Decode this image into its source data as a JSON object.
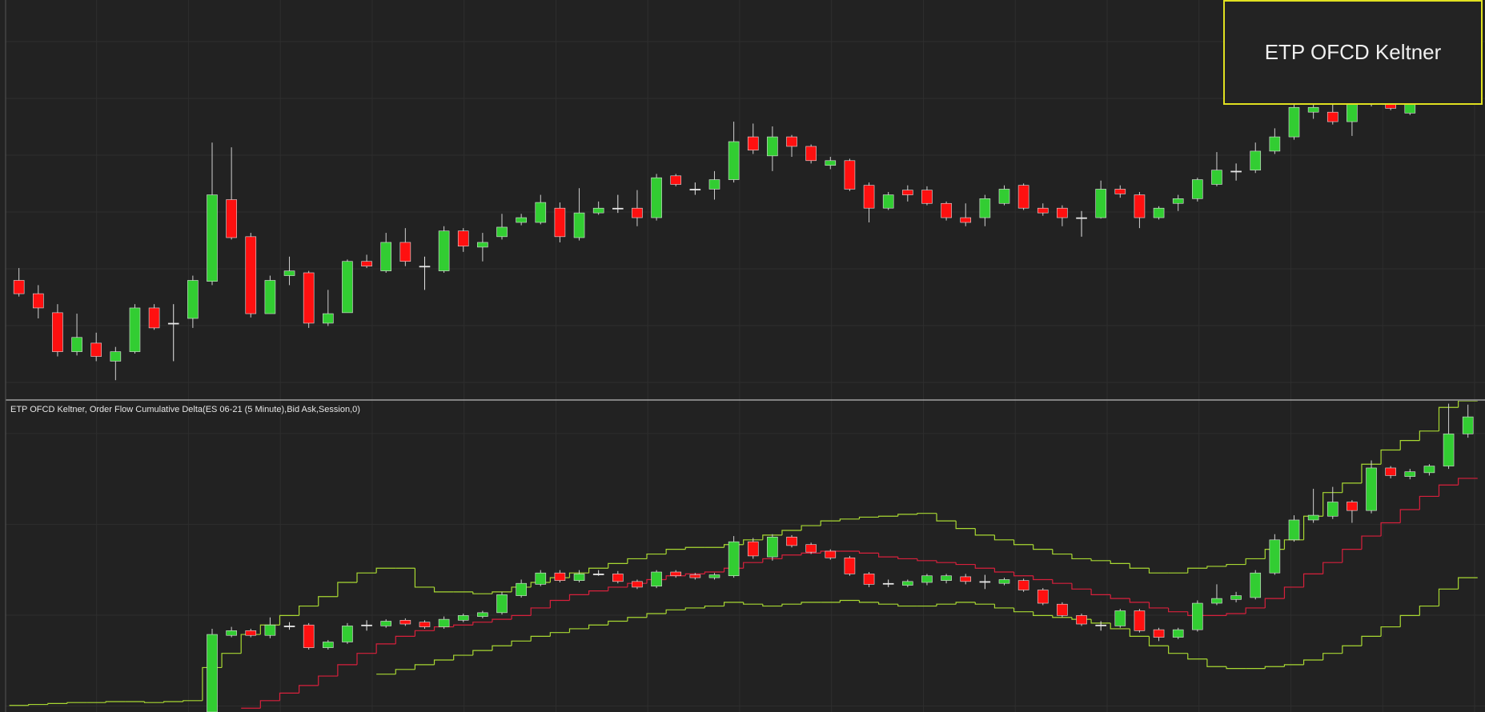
{
  "overlay": {
    "label": "ETP OFCD Keltner"
  },
  "chart_data": [
    {
      "type": "candlestick",
      "up_color": "#32cd32",
      "down_color": "#ff1010",
      "doji_color": "#e8e8e8",
      "ylim": [
        0,
        420
      ],
      "categories": [
        null,
        null,
        null,
        null,
        null,
        null,
        null,
        null,
        null,
        null,
        null,
        null,
        null,
        null,
        null,
        null,
        null,
        null,
        null,
        null,
        null,
        null,
        null,
        null,
        null,
        null,
        null,
        null,
        null,
        null,
        null,
        null,
        null,
        null,
        null,
        null,
        null,
        null,
        null,
        null,
        null,
        null,
        null,
        null,
        null,
        null,
        null,
        null,
        null,
        null,
        null,
        null,
        null,
        null,
        null,
        null,
        null,
        null,
        null,
        null,
        null,
        null,
        null,
        null,
        null,
        null,
        null,
        null,
        null,
        null,
        null,
        null,
        null,
        null,
        null,
        null
      ],
      "open": [
        125,
        111,
        91,
        50,
        59,
        40,
        50,
        96,
        80,
        85,
        124,
        210,
        171,
        90,
        130,
        133,
        80,
        91,
        145,
        135,
        165,
        140,
        135,
        177,
        160,
        171,
        186,
        186,
        201,
        170,
        196,
        201,
        201,
        191,
        235,
        221,
        221,
        231,
        276,
        256,
        276,
        266,
        246,
        251,
        225,
        201,
        220,
        220,
        206,
        191,
        191,
        206,
        225,
        201,
        201,
        191,
        191,
        221,
        215,
        191,
        206,
        211,
        226,
        240,
        241,
        261,
        276,
        302,
        302,
        292,
        310,
        310,
        301,
        null,
        null,
        null
      ],
      "high": [
        138,
        120,
        100,
        90,
        70,
        55,
        100,
        100,
        100,
        130,
        270,
        265,
        175,
        130,
        150,
        135,
        115,
        147,
        152,
        175,
        180,
        150,
        182,
        180,
        175,
        195,
        195,
        215,
        207,
        222,
        208,
        215,
        220,
        237,
        237,
        228,
        240,
        292,
        290,
        287,
        278,
        268,
        255,
        253,
        228,
        218,
        225,
        224,
        208,
        206,
        215,
        225,
        227,
        206,
        204,
        198,
        230,
        225,
        218,
        203,
        215,
        233,
        260,
        248,
        270,
        285,
        312,
        315,
        310,
        312,
        325,
        315,
        315,
        null,
        null,
        null
      ],
      "low": [
        108,
        85,
        45,
        46,
        40,
        20,
        48,
        73,
        40,
        75,
        120,
        168,
        86,
        90,
        120,
        75,
        77,
        91,
        138,
        133,
        140,
        115,
        133,
        155,
        145,
        168,
        183,
        184,
        165,
        167,
        194,
        196,
        182,
        188,
        224,
        215,
        210,
        228,
        258,
        240,
        255,
        248,
        242,
        219,
        186,
        199,
        208,
        204,
        188,
        182,
        182,
        204,
        199,
        193,
        182,
        171,
        190,
        212,
        180,
        189,
        198,
        208,
        224,
        230,
        238,
        258,
        273,
        295,
        289,
        277,
        308,
        304,
        299,
        null,
        null,
        null
      ],
      "close": [
        111,
        96,
        50,
        65,
        45,
        50,
        96,
        75,
        80,
        125,
        215,
        170,
        90,
        125,
        135,
        80,
        90,
        145,
        140,
        165,
        145,
        140,
        177,
        161,
        165,
        181,
        191,
        207,
        171,
        196,
        201,
        201,
        191,
        233,
        226,
        221,
        231,
        271,
        262,
        276,
        266,
        251,
        251,
        221,
        201,
        215,
        215,
        206,
        191,
        186,
        211,
        221,
        201,
        196,
        191,
        191,
        221,
        216,
        191,
        201,
        211,
        231,
        241,
        240,
        261,
        276,
        307,
        307,
        292,
        310,
        320,
        306,
        310,
        null,
        null,
        null
      ]
    },
    {
      "type": "candlestick",
      "title": "ETP OFCD Keltner, Order Flow Cumulative Delta(ES 06-21 (5 Minute),Bid Ask,Session,0)",
      "up_color": "#32cd32",
      "down_color": "#ff1010",
      "doji_color": "#e8e8e8",
      "ylim": [
        0,
        329
      ],
      "categories": [
        null,
        null,
        null,
        null,
        null,
        null,
        null,
        null,
        null,
        null,
        null,
        null,
        null,
        null,
        null,
        null,
        null,
        null,
        null,
        null,
        null,
        null,
        null,
        null,
        null,
        null,
        null,
        null,
        null,
        null,
        null,
        null,
        null,
        null,
        null,
        null,
        null,
        null,
        null,
        null,
        null,
        null,
        null,
        null,
        null,
        null,
        null,
        null,
        null,
        null,
        null,
        null,
        null,
        null,
        null,
        null,
        null,
        null,
        null,
        null,
        null,
        null,
        null,
        null,
        null,
        null,
        null,
        null,
        null,
        null,
        null,
        null,
        null,
        null,
        null,
        null
      ],
      "open": [
        null,
        null,
        null,
        null,
        null,
        null,
        null,
        null,
        null,
        null,
        0,
        81,
        86,
        81,
        91,
        92,
        68,
        74,
        92,
        91,
        97,
        95,
        90,
        97,
        101,
        105,
        123,
        135,
        147,
        139,
        146,
        146,
        138,
        133,
        148,
        145,
        142,
        144,
        180,
        164,
        185,
        177,
        170,
        163,
        146,
        136,
        134,
        137,
        139,
        143,
        138,
        136,
        139,
        129,
        114,
        102,
        92,
        91,
        107,
        87,
        79,
        87,
        115,
        119,
        121,
        147,
        182,
        203,
        207,
        222,
        213,
        258,
        249,
        253,
        260,
        294
      ],
      "high": [
        null,
        null,
        null,
        null,
        null,
        null,
        null,
        null,
        null,
        null,
        88,
        90,
        88,
        100,
        95,
        94,
        76,
        94,
        97,
        98,
        99,
        97,
        101,
        104,
        107,
        127,
        140,
        150,
        150,
        150,
        150,
        149,
        140,
        150,
        150,
        147,
        147,
        186,
        184,
        188,
        187,
        179,
        172,
        165,
        148,
        140,
        140,
        146,
        146,
        146,
        145,
        142,
        141,
        131,
        116,
        104,
        96,
        109,
        109,
        89,
        89,
        118,
        135,
        127,
        150,
        188,
        208,
        236,
        238,
        224,
        266,
        260,
        257,
        262,
        326,
        325
      ],
      "low": [
        null,
        null,
        null,
        null,
        null,
        null,
        null,
        null,
        null,
        null,
        0,
        79,
        79,
        78,
        87,
        66,
        66,
        72,
        86,
        89,
        91,
        88,
        88,
        95,
        99,
        103,
        121,
        133,
        137,
        137,
        144,
        136,
        130,
        131,
        142,
        140,
        140,
        142,
        162,
        160,
        174,
        167,
        161,
        144,
        132,
        132,
        132,
        134,
        136,
        135,
        130,
        134,
        127,
        113,
        100,
        91,
        86,
        89,
        84,
        75,
        77,
        85,
        113,
        116,
        119,
        145,
        180,
        200,
        204,
        200,
        210,
        247,
        246,
        250,
        257,
        290
      ],
      "close": [
        null,
        null,
        null,
        null,
        null,
        null,
        null,
        null,
        null,
        null,
        82,
        86,
        81,
        92,
        91,
        68,
        74,
        91,
        92,
        96,
        93,
        90,
        98,
        102,
        105,
        124,
        136,
        147,
        139,
        146,
        146,
        138,
        132,
        148,
        144,
        142,
        145,
        180,
        165,
        185,
        176,
        169,
        163,
        146,
        135,
        136,
        138,
        144,
        144,
        138,
        138,
        140,
        129,
        115,
        102,
        93,
        92,
        107,
        86,
        79,
        87,
        115,
        120,
        123,
        147,
        182,
        203,
        208,
        222,
        213,
        258,
        250,
        254,
        260,
        294,
        312
      ],
      "series": [
        {
          "color": "#a8d832",
          "values": [
            7,
            8,
            9,
            10,
            10,
            11,
            11,
            10,
            11,
            12,
            47,
            62,
            82,
            92,
            102,
            112,
            122,
            137,
            147,
            152,
            152,
            132,
            127,
            127,
            125,
            127,
            132,
            137,
            142,
            147,
            152,
            157,
            162,
            167,
            172,
            174,
            174,
            177,
            182,
            187,
            192,
            197,
            202,
            204,
            206,
            207,
            209,
            210,
            202,
            194,
            187,
            182,
            177,
            172,
            167,
            162,
            160,
            157,
            152,
            147,
            147,
            152,
            154,
            156,
            162,
            172,
            182,
            207,
            232,
            242,
            262,
            277,
            287,
            297,
            322,
            329
          ]
        },
        {
          "color": "#d8203c",
          "values": [
            null,
            null,
            null,
            null,
            null,
            null,
            null,
            null,
            null,
            null,
            null,
            null,
            4,
            12,
            20,
            28,
            38,
            50,
            62,
            72,
            80,
            86,
            90,
            92,
            95,
            98,
            102,
            110,
            118,
            124,
            128,
            132,
            136,
            140,
            144,
            146,
            148,
            152,
            158,
            162,
            166,
            168,
            170,
            170,
            168,
            164,
            162,
            160,
            158,
            156,
            152,
            148,
            144,
            140,
            136,
            130,
            124,
            120,
            116,
            110,
            106,
            102,
            102,
            104,
            110,
            120,
            132,
            146,
            158,
            172,
            186,
            200,
            214,
            228,
            240,
            247
          ]
        },
        {
          "color": "#a8d832",
          "values": [
            null,
            null,
            null,
            null,
            null,
            null,
            null,
            null,
            null,
            null,
            null,
            null,
            null,
            null,
            null,
            null,
            null,
            null,
            null,
            40,
            45,
            50,
            55,
            60,
            65,
            70,
            75,
            80,
            84,
            88,
            92,
            96,
            100,
            104,
            108,
            110,
            112,
            116,
            114,
            112,
            114,
            116,
            116,
            118,
            116,
            114,
            112,
            112,
            114,
            116,
            114,
            110,
            106,
            102,
            100,
            98,
            94,
            88,
            80,
            70,
            62,
            56,
            48,
            46,
            46,
            48,
            50,
            55,
            62,
            70,
            80,
            90,
            102,
            112,
            130,
            142
          ]
        }
      ]
    }
  ]
}
